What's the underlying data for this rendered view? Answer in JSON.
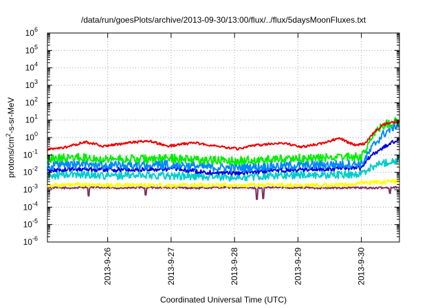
{
  "chart_data": {
    "type": "line",
    "title": "/data/run/goesPlots/archive/2013-09-30/13:00/flux/../flux/5daysMoonFluxes.txt",
    "xlabel": "Coordinated Universal Time (UTC)",
    "ylabel_parts": {
      "base": "protons/cm",
      "sup": "2",
      "rest": "-s-sr-MeV"
    },
    "yscale": "log",
    "ylim_exp": [
      -6,
      6
    ],
    "y_tick_base": "10",
    "y_tick_exps": [
      "-6",
      "-5",
      "-4",
      "-3",
      "-2",
      "-1",
      "0",
      "1",
      "2",
      "3",
      "4",
      "5",
      "6"
    ],
    "xlim_days": [
      25.0,
      30.55
    ],
    "x_ticks": [
      {
        "label": "2013-9-26",
        "day": 25.95
      },
      {
        "label": "2013-9-27",
        "day": 26.95
      },
      {
        "label": "2013-9-28",
        "day": 27.95
      },
      {
        "label": "2013-9-29",
        "day": 28.95
      },
      {
        "label": "2013-9-30",
        "day": 29.95
      }
    ],
    "grid": true,
    "series": [
      {
        "color": "#7e2e63",
        "log_points": [
          [
            25.0,
            -2.88
          ],
          [
            25.4,
            -2.9
          ],
          [
            25.6,
            -2.85
          ],
          [
            25.8,
            -2.88
          ],
          [
            26.2,
            -2.9
          ],
          [
            26.6,
            -2.87
          ],
          [
            27.0,
            -2.88
          ],
          [
            27.4,
            -2.9
          ],
          [
            27.8,
            -2.86
          ],
          [
            28.2,
            -2.9
          ],
          [
            28.6,
            -2.87
          ],
          [
            29.0,
            -2.88
          ],
          [
            29.4,
            -2.9
          ],
          [
            29.8,
            -2.88
          ],
          [
            30.2,
            -2.9
          ],
          [
            30.55,
            -2.85
          ]
        ],
        "noise": 0.05,
        "dips": [
          [
            25.65,
            -3.35
          ],
          [
            26.55,
            -3.3
          ],
          [
            28.3,
            -3.55
          ],
          [
            28.4,
            -3.5
          ],
          [
            30.4,
            -3.2
          ]
        ]
      },
      {
        "color": "#ffff00",
        "log_points": [
          [
            25.0,
            -2.75
          ],
          [
            25.5,
            -2.72
          ],
          [
            26.0,
            -2.75
          ],
          [
            26.5,
            -2.72
          ],
          [
            27.0,
            -2.75
          ],
          [
            27.5,
            -2.72
          ],
          [
            28.0,
            -2.75
          ],
          [
            28.5,
            -2.72
          ],
          [
            29.0,
            -2.75
          ],
          [
            29.7,
            -2.72
          ],
          [
            30.0,
            -2.6
          ],
          [
            30.55,
            -2.5
          ]
        ],
        "noise": 0.12,
        "dips": []
      },
      {
        "color": "#00cccc",
        "log_points": [
          [
            25.0,
            -2.2
          ],
          [
            25.5,
            -2.1
          ],
          [
            26.0,
            -2.2
          ],
          [
            26.5,
            -2.15
          ],
          [
            27.0,
            -2.2
          ],
          [
            27.5,
            -2.25
          ],
          [
            28.0,
            -2.3
          ],
          [
            28.5,
            -2.2
          ],
          [
            29.0,
            -2.15
          ],
          [
            29.5,
            -2.15
          ],
          [
            29.95,
            -2.1
          ],
          [
            30.1,
            -1.7
          ],
          [
            30.3,
            -1.45
          ],
          [
            30.55,
            -1.3
          ]
        ],
        "noise": 0.22,
        "dips": []
      },
      {
        "color": "#0000dd",
        "log_points": [
          [
            25.0,
            -1.9
          ],
          [
            25.5,
            -1.8
          ],
          [
            26.0,
            -1.85
          ],
          [
            26.5,
            -1.85
          ],
          [
            27.0,
            -1.8
          ],
          [
            27.5,
            -2.0
          ],
          [
            28.0,
            -2.05
          ],
          [
            28.5,
            -1.9
          ],
          [
            29.0,
            -1.85
          ],
          [
            29.5,
            -1.8
          ],
          [
            29.95,
            -1.75
          ],
          [
            30.05,
            -1.2
          ],
          [
            30.2,
            -0.8
          ],
          [
            30.4,
            -0.35
          ],
          [
            30.55,
            -0.1
          ]
        ],
        "noise": 0.12,
        "dips": []
      },
      {
        "color": "#0088ff",
        "log_points": [
          [
            25.0,
            -1.6
          ],
          [
            25.5,
            -1.55
          ],
          [
            26.0,
            -1.6
          ],
          [
            26.5,
            -1.6
          ],
          [
            27.0,
            -1.55
          ],
          [
            27.5,
            -1.7
          ],
          [
            28.0,
            -1.75
          ],
          [
            28.5,
            -1.65
          ],
          [
            29.0,
            -1.6
          ],
          [
            29.5,
            -1.55
          ],
          [
            29.95,
            -1.5
          ],
          [
            30.05,
            -1.0
          ],
          [
            30.15,
            -0.4
          ],
          [
            30.3,
            0.2
          ],
          [
            30.45,
            0.6
          ],
          [
            30.55,
            0.8
          ]
        ],
        "noise": 0.25,
        "dips": []
      },
      {
        "color": "#00ee00",
        "log_points": [
          [
            25.0,
            -1.2
          ],
          [
            25.5,
            -1.15
          ],
          [
            26.0,
            -1.2
          ],
          [
            26.5,
            -1.25
          ],
          [
            27.0,
            -1.2
          ],
          [
            27.5,
            -1.3
          ],
          [
            28.0,
            -1.35
          ],
          [
            28.5,
            -1.25
          ],
          [
            29.0,
            -1.2
          ],
          [
            29.5,
            -1.15
          ],
          [
            29.95,
            -1.1
          ],
          [
            30.05,
            -0.5
          ],
          [
            30.15,
            0.2
          ],
          [
            30.3,
            0.7
          ],
          [
            30.45,
            0.9
          ],
          [
            30.55,
            0.95
          ]
        ],
        "noise": 0.25,
        "dips": []
      },
      {
        "color": "#ee0000",
        "log_points": [
          [
            25.0,
            -0.7
          ],
          [
            25.3,
            -0.55
          ],
          [
            25.6,
            -0.25
          ],
          [
            25.9,
            -0.5
          ],
          [
            26.3,
            -0.3
          ],
          [
            26.6,
            -0.2
          ],
          [
            26.9,
            -0.5
          ],
          [
            27.3,
            -0.3
          ],
          [
            27.6,
            -0.45
          ],
          [
            28.0,
            -0.65
          ],
          [
            28.3,
            -0.45
          ],
          [
            28.7,
            -0.3
          ],
          [
            29.0,
            -0.55
          ],
          [
            29.3,
            -0.35
          ],
          [
            29.6,
            -0.05
          ],
          [
            29.85,
            -0.45
          ],
          [
            30.0,
            -0.35
          ],
          [
            30.15,
            0.3
          ],
          [
            30.3,
            0.75
          ],
          [
            30.45,
            0.9
          ],
          [
            30.55,
            0.85
          ]
        ],
        "noise": 0.07,
        "dips": []
      }
    ]
  }
}
